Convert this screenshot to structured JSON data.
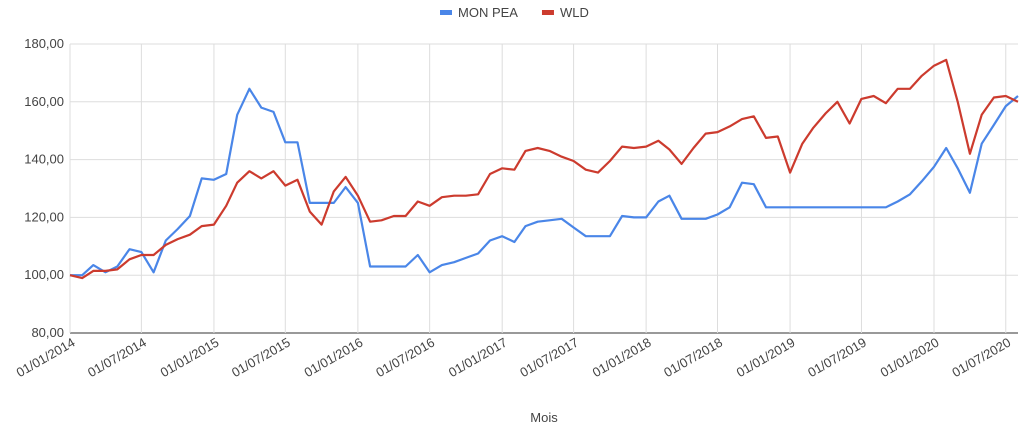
{
  "chart_data": {
    "type": "line",
    "x_label": "Mois",
    "x": [
      "2014-01-01",
      "2014-02-01",
      "2014-03-01",
      "2014-04-01",
      "2014-05-01",
      "2014-06-01",
      "2014-07-01",
      "2014-08-01",
      "2014-09-01",
      "2014-10-01",
      "2014-11-01",
      "2014-12-01",
      "2015-01-01",
      "2015-02-01",
      "2015-03-01",
      "2015-04-01",
      "2015-05-01",
      "2015-06-01",
      "2015-07-01",
      "2015-08-01",
      "2015-09-01",
      "2015-10-01",
      "2015-11-01",
      "2015-12-01",
      "2016-01-01",
      "2016-02-01",
      "2016-03-01",
      "2016-04-01",
      "2016-05-01",
      "2016-06-01",
      "2016-07-01",
      "2016-08-01",
      "2016-09-01",
      "2016-10-01",
      "2016-11-01",
      "2016-12-01",
      "2017-01-01",
      "2017-02-01",
      "2017-03-01",
      "2017-04-01",
      "2017-05-01",
      "2017-06-01",
      "2017-07-01",
      "2017-08-01",
      "2017-09-01",
      "2017-10-01",
      "2017-11-01",
      "2017-12-01",
      "2018-01-01",
      "2018-02-01",
      "2018-03-01",
      "2018-04-01",
      "2018-05-01",
      "2018-06-01",
      "2018-07-01",
      "2018-08-01",
      "2018-09-01",
      "2018-10-01",
      "2018-11-01",
      "2018-12-01",
      "2019-01-01",
      "2019-02-01",
      "2019-03-01",
      "2019-04-01",
      "2019-05-01",
      "2019-06-01",
      "2019-07-01",
      "2019-08-01",
      "2019-09-01",
      "2019-10-01",
      "2019-11-01",
      "2019-12-01",
      "2020-01-01",
      "2020-02-01",
      "2020-03-01",
      "2020-04-01",
      "2020-05-01",
      "2020-06-01",
      "2020-07-01",
      "2020-08-01"
    ],
    "series": [
      {
        "name": "MON PEA",
        "color": "#4a86e8",
        "values": [
          100,
          100,
          103.5,
          101,
          103,
          109,
          108,
          101,
          112,
          116,
          120.5,
          133.5,
          133,
          135,
          155.5,
          164.5,
          158,
          156.5,
          146,
          146,
          125,
          125,
          125,
          130.5,
          125,
          103,
          103,
          103,
          103,
          107,
          101,
          103.5,
          104.5,
          106,
          107.5,
          112,
          113.5,
          111.5,
          117,
          118.5,
          119,
          119.5,
          116.5,
          113.5,
          113.5,
          113.5,
          120.5,
          120,
          120,
          125.5,
          127.5,
          119.5,
          119.5,
          119.5,
          121,
          123.5,
          132,
          131.5,
          123.5,
          123.5,
          123.5,
          123.5,
          123.5,
          123.5,
          123.5,
          123.5,
          123.5,
          123.5,
          123.5,
          125.5,
          128,
          132.5,
          137.5,
          144,
          137,
          128.5,
          145.5,
          152,
          158.5,
          162
        ]
      },
      {
        "name": "WLD",
        "color": "#cc3b2e",
        "values": [
          100,
          99,
          101.5,
          101.5,
          102,
          105.5,
          107,
          107,
          110.5,
          112.5,
          114,
          117,
          117.5,
          124,
          132,
          136,
          133.5,
          136,
          131,
          133,
          122,
          117.5,
          129,
          134,
          127.5,
          118.5,
          119,
          120.5,
          120.5,
          125.5,
          124,
          127,
          127.5,
          127.5,
          128,
          135,
          137,
          136.5,
          143,
          144,
          143,
          141,
          139.5,
          136.5,
          135.5,
          139.5,
          144.5,
          144,
          144.5,
          146.5,
          143.5,
          138.5,
          144,
          149,
          149.5,
          151.5,
          154,
          155,
          147.5,
          148,
          135.5,
          145.5,
          151,
          156,
          160,
          152.5,
          161,
          162,
          159.5,
          164.5,
          164.5,
          169,
          172.5,
          174.5,
          160,
          142,
          155.5,
          161.5,
          162,
          160
        ]
      }
    ],
    "xlim": [
      "2014-01-01",
      "2020-08-01"
    ],
    "xticks": [
      {
        "value": "2014-01-01",
        "label": "01/01/2014"
      },
      {
        "value": "2014-07-01",
        "label": "01/07/2014"
      },
      {
        "value": "2015-01-01",
        "label": "01/01/2015"
      },
      {
        "value": "2015-07-01",
        "label": "01/07/2015"
      },
      {
        "value": "2016-01-01",
        "label": "01/01/2016"
      },
      {
        "value": "2016-07-01",
        "label": "01/07/2016"
      },
      {
        "value": "2017-01-01",
        "label": "01/01/2017"
      },
      {
        "value": "2017-07-01",
        "label": "01/07/2017"
      },
      {
        "value": "2018-01-01",
        "label": "01/01/2018"
      },
      {
        "value": "2018-07-01",
        "label": "01/07/2018"
      },
      {
        "value": "2019-01-01",
        "label": "01/01/2019"
      },
      {
        "value": "2019-07-01",
        "label": "01/07/2019"
      },
      {
        "value": "2020-01-01",
        "label": "01/01/2020"
      },
      {
        "value": "2020-07-01",
        "label": "01/07/2020"
      }
    ],
    "ylim": [
      80,
      180
    ],
    "yticks": [
      {
        "value": 80,
        "label": "80,00"
      },
      {
        "value": 100,
        "label": "100,00"
      },
      {
        "value": 120,
        "label": "120,00"
      },
      {
        "value": 140,
        "label": "140,00"
      },
      {
        "value": 160,
        "label": "160,00"
      },
      {
        "value": 180,
        "label": "180,00"
      }
    ],
    "grid": true,
    "legend": "top"
  }
}
